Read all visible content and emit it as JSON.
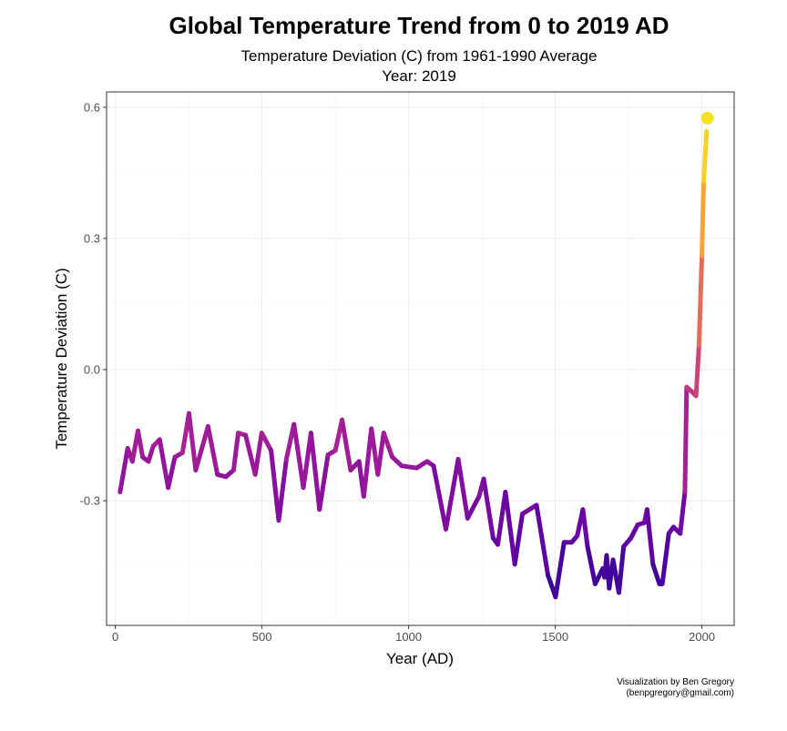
{
  "chart_data": {
    "type": "line",
    "title": "Global Temperature Trend from 0 to 2019 AD",
    "subtitle": "Temperature Deviation (C) from 1961-1990 Average",
    "year_label": "Year:  2019",
    "xlabel": "Year (AD)",
    "ylabel": "Temperature Deviation (C)",
    "xlim": [
      -30,
      2110
    ],
    "ylim": [
      -0.585,
      0.635
    ],
    "x_ticks": [
      0,
      500,
      1000,
      1500,
      2000
    ],
    "x_tick_labels": [
      "0",
      "500",
      "1000",
      "1500",
      "2000"
    ],
    "y_ticks": [
      -0.3,
      0.0,
      0.3,
      0.6
    ],
    "y_tick_labels": [
      "-0.3",
      "0.0",
      "0.3",
      "0.6"
    ],
    "grid": true,
    "color_scale": [
      "#0d0887",
      "#5b02a3",
      "#9a179b",
      "#cb4678",
      "#eb7852",
      "#fbb32f",
      "#f0f921"
    ],
    "end_point_color": "#f5e11f",
    "series": [
      {
        "x": [
          16,
          42,
          58,
          77,
          93,
          113,
          129,
          151,
          180,
          203,
          229,
          251,
          274,
          316,
          348,
          377,
          403,
          419,
          444,
          477,
          499,
          531,
          557,
          583,
          609,
          641,
          667,
          696,
          725,
          750,
          773,
          802,
          831,
          847,
          873,
          895,
          915,
          944,
          976,
          1027,
          1063,
          1085,
          1127,
          1169,
          1201,
          1240,
          1256,
          1288,
          1304,
          1330,
          1362,
          1388,
          1436,
          1475,
          1501,
          1530,
          1556,
          1575,
          1594,
          1610,
          1636,
          1662,
          1668,
          1675,
          1684,
          1697,
          1717,
          1733,
          1758,
          1781,
          1804,
          1813,
          1833,
          1855,
          1865,
          1887,
          1903,
          1926,
          1942,
          1948,
          1965,
          1980,
          1990,
          2000,
          2006,
          2016
        ],
        "y": [
          -0.28,
          -0.18,
          -0.21,
          -0.14,
          -0.2,
          -0.21,
          -0.175,
          -0.16,
          -0.27,
          -0.2,
          -0.19,
          -0.1,
          -0.23,
          -0.13,
          -0.24,
          -0.245,
          -0.23,
          -0.145,
          -0.15,
          -0.24,
          -0.145,
          -0.185,
          -0.345,
          -0.205,
          -0.125,
          -0.27,
          -0.145,
          -0.32,
          -0.195,
          -0.185,
          -0.115,
          -0.23,
          -0.21,
          -0.29,
          -0.135,
          -0.24,
          -0.145,
          -0.2,
          -0.22,
          -0.225,
          -0.21,
          -0.22,
          -0.365,
          -0.205,
          -0.34,
          -0.29,
          -0.25,
          -0.385,
          -0.4,
          -0.28,
          -0.445,
          -0.33,
          -0.31,
          -0.47,
          -0.52,
          -0.395,
          -0.395,
          -0.38,
          -0.32,
          -0.405,
          -0.49,
          -0.455,
          -0.475,
          -0.425,
          -0.5,
          -0.435,
          -0.51,
          -0.405,
          -0.385,
          -0.355,
          -0.35,
          -0.32,
          -0.445,
          -0.49,
          -0.49,
          -0.375,
          -0.36,
          -0.375,
          -0.28,
          -0.04,
          -0.05,
          -0.06,
          0.055,
          0.26,
          0.43,
          0.545
        ]
      }
    ],
    "end_point": {
      "x": 2019,
      "y": 0.575
    }
  },
  "credit": {
    "line1": "Visualization by Ben Gregory",
    "line2": "(benpgregory@gmail.com)"
  }
}
